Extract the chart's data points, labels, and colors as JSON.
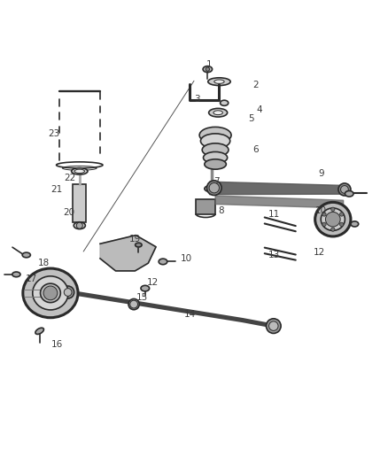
{
  "background_color": "#ffffff",
  "line_color": "#2a2a2a",
  "label_color": "#3a3a3a",
  "fig_width": 4.38,
  "fig_height": 5.33,
  "dpi": 100
}
